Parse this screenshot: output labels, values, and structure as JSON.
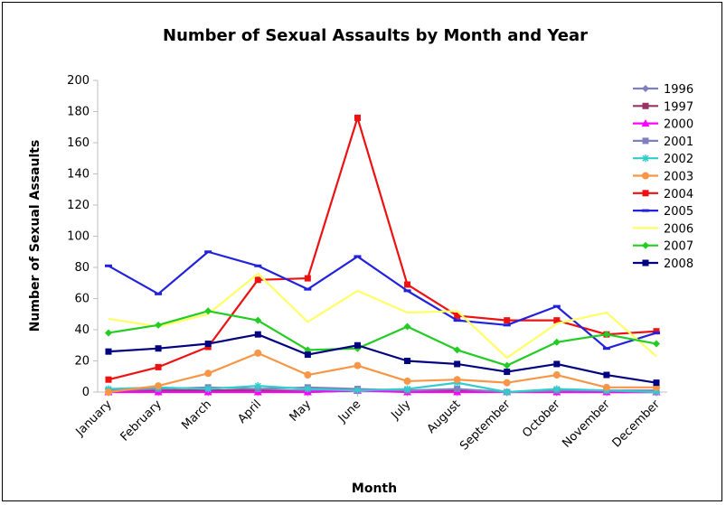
{
  "chart_data": {
    "type": "line",
    "title": "Number of Sexual Assaults by Month and Year",
    "xlabel": "Month",
    "ylabel": "Number of Sexual Assaults",
    "ylim": [
      0,
      200
    ],
    "yticks": [
      "0",
      "20",
      "40",
      "60",
      "80",
      "100",
      "120",
      "140",
      "160",
      "180",
      "200"
    ],
    "categories": [
      "January",
      "February",
      "March",
      "April",
      "May",
      "June",
      "July",
      "August",
      "September",
      "October",
      "November",
      "December"
    ],
    "grid": false,
    "legend_position": "right",
    "series": [
      {
        "name": "1996",
        "color": "#7f7fbf",
        "marker": "diamond",
        "values": [
          0,
          1,
          1,
          1,
          1,
          1,
          1,
          1,
          0,
          0,
          0,
          0
        ]
      },
      {
        "name": "1997",
        "color": "#993366",
        "marker": "square",
        "values": [
          0,
          1,
          1,
          1,
          0,
          1,
          1,
          1,
          0,
          1,
          0,
          0
        ]
      },
      {
        "name": "2000",
        "color": "#ff00ff",
        "marker": "triangle",
        "values": [
          0,
          0,
          0,
          0,
          0,
          1,
          0,
          0,
          0,
          0,
          0,
          0
        ]
      },
      {
        "name": "2001",
        "color": "#8080c0",
        "marker": "square",
        "values": [
          1,
          2,
          3,
          2,
          3,
          2,
          1,
          2,
          0,
          1,
          1,
          1
        ]
      },
      {
        "name": "2002",
        "color": "#33cccc",
        "marker": "star",
        "values": [
          2,
          3,
          2,
          4,
          2,
          1,
          2,
          6,
          0,
          2,
          1,
          0
        ]
      },
      {
        "name": "2003",
        "color": "#f79646",
        "marker": "circle",
        "values": [
          0,
          4,
          12,
          25,
          11,
          17,
          7,
          8,
          6,
          11,
          3,
          3
        ]
      },
      {
        "name": "2004",
        "color": "#ee1111",
        "marker": "square",
        "values": [
          8,
          16,
          29,
          72,
          73,
          176,
          69,
          49,
          46,
          46,
          37,
          39
        ]
      },
      {
        "name": "2005",
        "color": "#2222dd",
        "marker": "dash",
        "values": [
          81,
          63,
          90,
          81,
          66,
          87,
          65,
          46,
          43,
          55,
          28,
          38
        ]
      },
      {
        "name": "2006",
        "color": "#ffff66",
        "marker": "none",
        "values": [
          47,
          42,
          50,
          76,
          45,
          65,
          51,
          52,
          22,
          44,
          51,
          23
        ]
      },
      {
        "name": "2007",
        "color": "#22cc22",
        "marker": "diamond",
        "values": [
          38,
          43,
          52,
          46,
          27,
          28,
          42,
          27,
          17,
          32,
          37,
          31
        ]
      },
      {
        "name": "2008",
        "color": "#000080",
        "marker": "square",
        "values": [
          26,
          28,
          31,
          37,
          24,
          30,
          20,
          18,
          13,
          18,
          11,
          6
        ]
      }
    ]
  }
}
